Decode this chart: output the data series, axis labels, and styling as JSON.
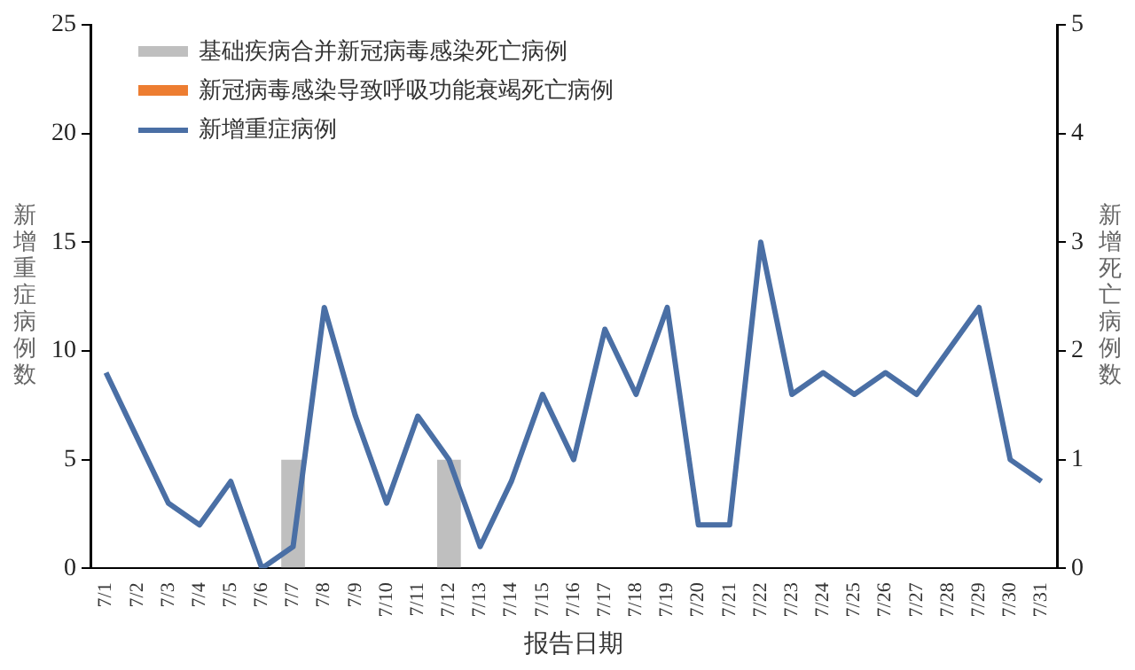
{
  "chart_data": {
    "type": "bar",
    "xlabel": "报告日期",
    "ylabel": "新增重症病例数",
    "y2label": "新增死亡病例数",
    "categories": [
      "7/1",
      "7/2",
      "7/3",
      "7/4",
      "7/5",
      "7/6",
      "7/7",
      "7/8",
      "7/9",
      "7/10",
      "7/11",
      "7/12",
      "7/13",
      "7/14",
      "7/15",
      "7/16",
      "7/17",
      "7/18",
      "7/19",
      "7/20",
      "7/21",
      "7/22",
      "7/23",
      "7/24",
      "7/25",
      "7/26",
      "7/27",
      "7/28",
      "7/29",
      "7/30",
      "7/31"
    ],
    "series": [
      {
        "name": "基础疾病合并新冠病毒感染死亡病例",
        "type": "bar",
        "axis": "y2",
        "color": "#bfbfbf",
        "values": [
          0,
          0,
          0,
          0,
          0,
          0,
          1,
          0,
          0,
          0,
          0,
          1,
          0,
          0,
          0,
          0,
          0,
          0,
          0,
          0,
          0,
          0,
          0,
          0,
          0,
          0,
          0,
          0,
          0,
          0,
          0
        ]
      },
      {
        "name": "新冠病毒感染导致呼吸功能衰竭死亡病例",
        "type": "bar",
        "axis": "y2",
        "color": "#ed7d31",
        "values": [
          0,
          0,
          0,
          0,
          0,
          0,
          0,
          0,
          0,
          0,
          0,
          0,
          0,
          0,
          0,
          0,
          0,
          0,
          0,
          0,
          0,
          0,
          0,
          0,
          0,
          0,
          0,
          0,
          0,
          0,
          0
        ]
      },
      {
        "name": "新增重症病例",
        "type": "line",
        "color": "#4a6fa5",
        "values": [
          9,
          6,
          3,
          2,
          4,
          0,
          1,
          12,
          7,
          3,
          7,
          5,
          1,
          4,
          8,
          5,
          11,
          8,
          12,
          2,
          2,
          15,
          8,
          9,
          8,
          9,
          8,
          10,
          12,
          5,
          4
        ]
      }
    ],
    "ylim": [
      0,
      25
    ],
    "yticks": [
      0,
      5,
      10,
      15,
      20,
      25
    ],
    "y2lim": [
      0,
      5
    ],
    "y2ticks": [
      0,
      1,
      2,
      3,
      4,
      5
    ],
    "grid": false,
    "legend": "top left",
    "marker": "none",
    "stacked": true
  }
}
